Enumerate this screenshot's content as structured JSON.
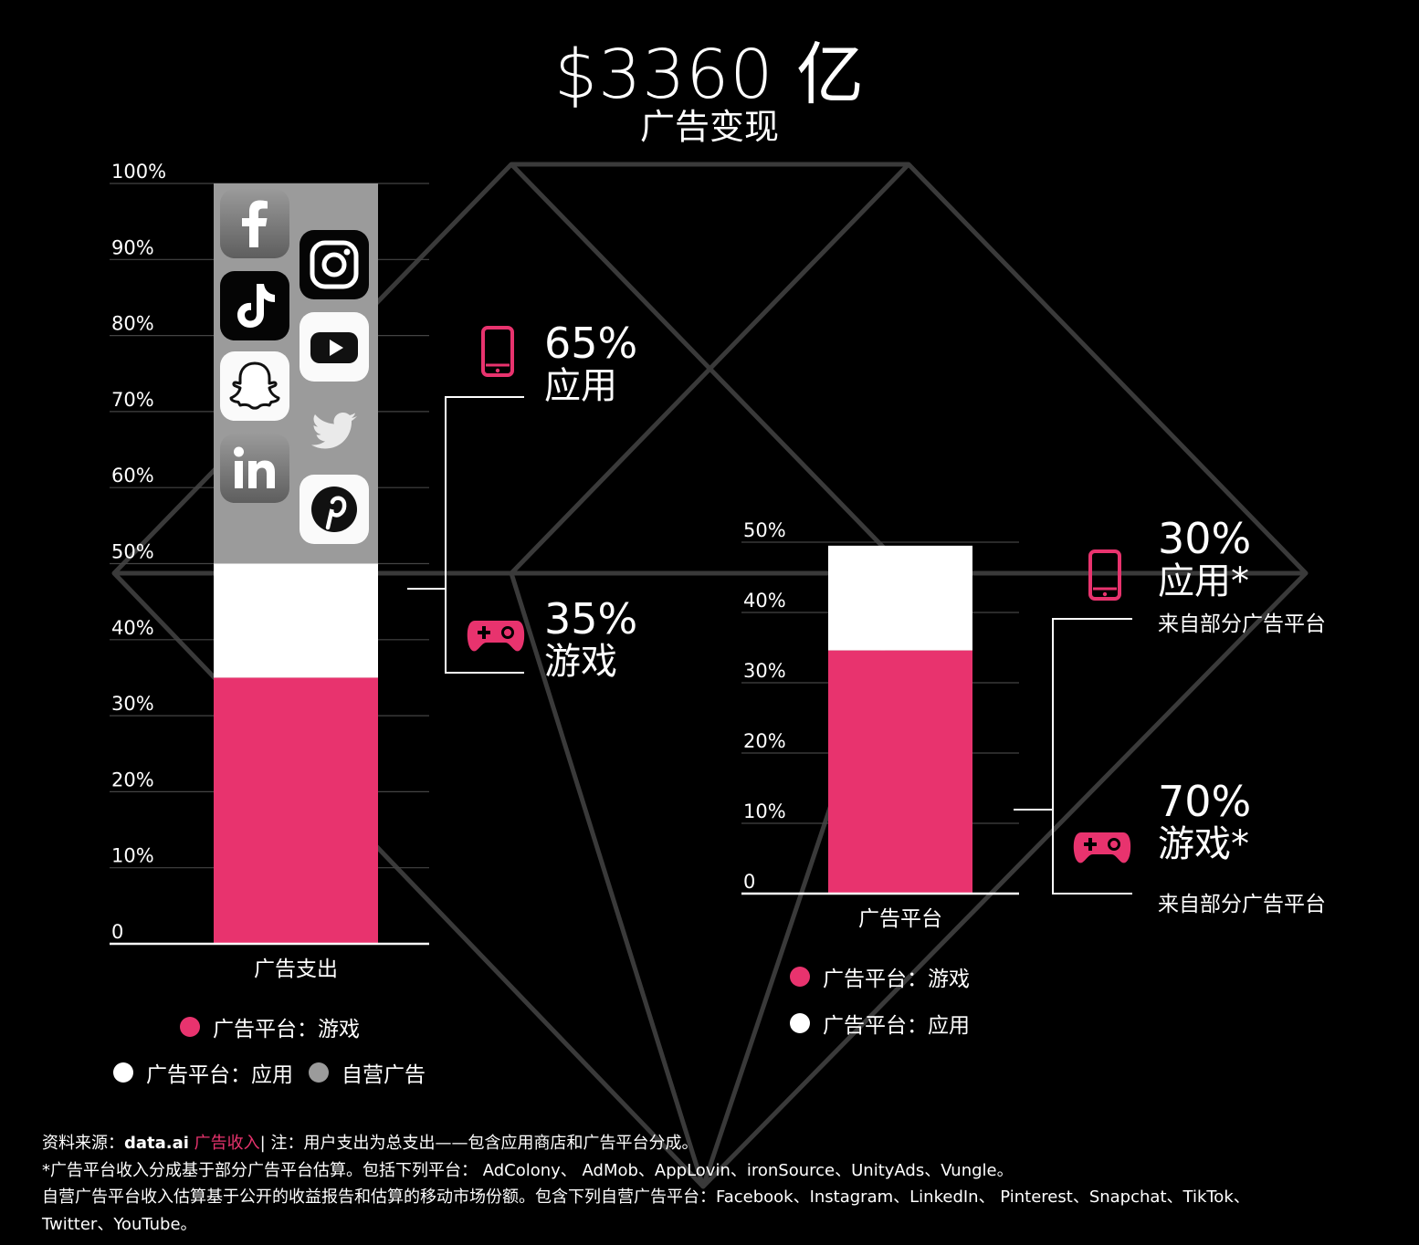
{
  "title": {
    "amount": "$3360 亿",
    "subtitle": "广告变现"
  },
  "colors": {
    "pink": "#e8336e",
    "white": "#ffffff",
    "grey": "#9b9b9b",
    "background": "#000000"
  },
  "left_callout": {
    "app": {
      "pct": "65%",
      "label": "应用"
    },
    "game": {
      "pct": "35%",
      "label": "游戏"
    }
  },
  "right_callout": {
    "app": {
      "pct": "30%",
      "label": "应用*",
      "note": "来自部分广告平台"
    },
    "game": {
      "pct": "70%",
      "label": "游戏*",
      "note": "来自部分广告平台"
    }
  },
  "icons": [
    "facebook-icon",
    "instagram-icon",
    "tiktok-icon",
    "youtube-icon",
    "snapchat-icon",
    "twitter-icon",
    "linkedin-icon",
    "pinterest-icon",
    "phone-icon",
    "gamepad-icon"
  ],
  "chart_data": [
    {
      "type": "bar",
      "stacked": true,
      "categories": [
        "广告支出"
      ],
      "y_ticks": [
        "0",
        "10%",
        "20%",
        "30%",
        "40%",
        "50%",
        "60%",
        "70%",
        "80%",
        "90%",
        "100%"
      ],
      "ylim": [
        0,
        100
      ],
      "grid": true,
      "series": [
        {
          "name": "广告平台：游戏",
          "values": [
            35
          ],
          "color": "#e8336e"
        },
        {
          "name": "广告平台：应用",
          "values": [
            15
          ],
          "color": "#ffffff"
        },
        {
          "name": "自营广告",
          "values": [
            50
          ],
          "color": "#9b9b9b"
        }
      ],
      "legend": [
        "广告平台：游戏",
        "广告平台：应用",
        "自营广告"
      ]
    },
    {
      "type": "bar",
      "stacked": true,
      "categories": [
        "广告平台"
      ],
      "y_ticks": [
        "0",
        "10%",
        "20%",
        "30%",
        "40%",
        "50%"
      ],
      "ylim": [
        0,
        50
      ],
      "grid": true,
      "series": [
        {
          "name": "广告平台：游戏",
          "values": [
            34.6
          ],
          "color": "#e8336e"
        },
        {
          "name": "广告平台：应用",
          "values": [
            14.9
          ],
          "color": "#ffffff"
        }
      ],
      "legend": [
        "广告平台：游戏",
        "广告平台：应用"
      ]
    }
  ],
  "footer": {
    "line1_prefix": "资料来源：",
    "line1_source": "data.ai",
    "line1_link": "广告收入",
    "line1_rest": "| 注：用户支出为总支出——包含应用商店和广告平台分成。",
    "line2": "*广告平台收入分成基于部分广告平台估算。包括下列平台： AdColony、 AdMob、AppLovin、ironSource、UnityAds、Vungle。",
    "line3": "自营广告平台收入估算基于公开的收益报告和估算的移动市场份额。包含下列自营广告平台：Facebook、Instagram、LinkedIn、 Pinterest、Snapchat、TikTok、",
    "line4": "Twitter、YouTube。"
  }
}
